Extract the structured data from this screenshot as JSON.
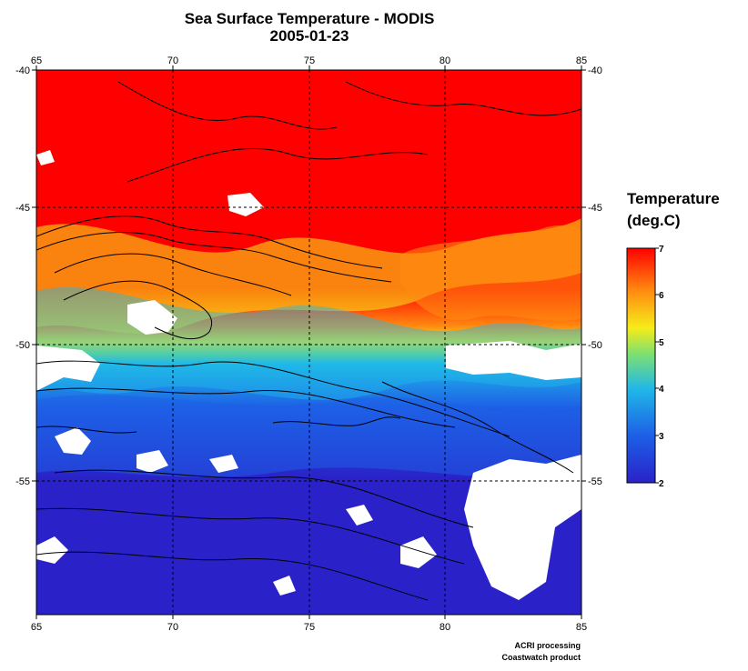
{
  "title": "Sea Surface Temperature - MODIS",
  "date": "2005-01-23",
  "map": {
    "lon_range": [
      65,
      85
    ],
    "lat_range": [
      -60,
      -40
    ],
    "lon_ticks": [
      "65",
      "70",
      "75",
      "80",
      "85"
    ],
    "lat_ticks": [
      "-40",
      "-45",
      "-50",
      "-55"
    ],
    "grid_lines": "dashed",
    "contours": "bathymetry contour lines (black)"
  },
  "legend": {
    "title_line1": "Temperature",
    "title_line2": "(deg.C)",
    "ticks": [
      "7",
      "6",
      "5",
      "4",
      "3",
      "2"
    ],
    "min": 2,
    "max": 7,
    "colors": [
      "#2a22c8",
      "#1d5fe6",
      "#20b8e8",
      "#7fe070",
      "#f6ec1a",
      "#ff8a10",
      "#ff0000"
    ]
  },
  "credits": {
    "line1": "ACRI processing",
    "line2": "Coastwatch product"
  },
  "fill_colors": {
    "cloud_mask": "#ffffff",
    "warm": "#ff0000",
    "cold": "#2a22c8"
  }
}
